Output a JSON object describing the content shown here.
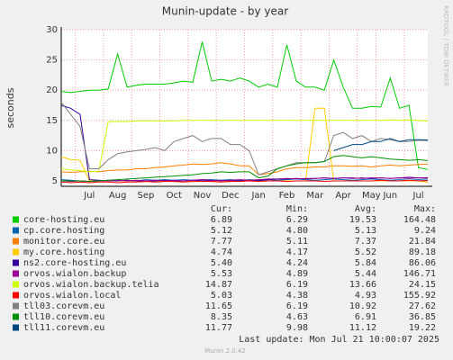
{
  "chart_data": {
    "type": "line",
    "title": "Munin-update - by year",
    "y_label": "seconds",
    "categories": [
      null,
      null,
      null,
      "Jul",
      null,
      null,
      "Aug",
      null,
      null,
      "Sep",
      null,
      null,
      "Oct",
      null,
      null,
      "Nov",
      null,
      null,
      "Dec",
      null,
      null,
      "Jan",
      null,
      null,
      "Feb",
      null,
      null,
      "Mar",
      null,
      null,
      "Apr",
      null,
      null,
      "May",
      null,
      "Jun",
      null,
      null,
      "Jul",
      null
    ],
    "ylim": [
      4.1,
      30
    ],
    "yticks": [
      5,
      10,
      15,
      20,
      25,
      30
    ],
    "grid": true,
    "legend_headers": [
      "Cur:",
      "Min:",
      "Avg:",
      "Max:"
    ],
    "series": [
      {
        "name": "core-hosting.eu",
        "color": "#00cc00",
        "stats": [
          "6.89",
          "6.29",
          "19.53",
          "164.48"
        ],
        "values": [
          19.8,
          19.6,
          19.8,
          20,
          20,
          20.2,
          26,
          20.5,
          20.8,
          21,
          21,
          21,
          21.2,
          21.5,
          21.3,
          28,
          21.5,
          21.8,
          21.5,
          22,
          21.5,
          20.5,
          21,
          20.5,
          27.5,
          21.5,
          20.5,
          20.5,
          20,
          25,
          20.5,
          17,
          17,
          17.3,
          17.2,
          22,
          17,
          17.5,
          7.2,
          6.89
        ]
      },
      {
        "name": "cp.core.hosting",
        "color": "#0066b3",
        "stats": [
          "5.12",
          "4.80",
          "5.13",
          "9.24"
        ],
        "values": [
          5.2,
          5.1,
          5,
          4.9,
          5,
          5.1,
          5,
          5.1,
          5,
          5.2,
          5.1,
          5.2,
          5.1,
          5.2,
          5.1,
          5.2,
          5.2,
          5.1,
          5.2,
          5.1,
          5.2,
          5.1,
          5.2,
          5.1,
          5.2,
          5.3,
          5.2,
          5.1,
          5.2,
          5.3,
          5.2,
          5.1,
          5.2,
          5.3,
          5.2,
          5.1,
          5.2,
          5.1,
          5.2,
          5.12
        ]
      },
      {
        "name": "monitor.core.eu",
        "color": "#ff8000",
        "stats": [
          "7.77",
          "5.11",
          "7.37",
          "21.84"
        ],
        "values": [
          6.5,
          6.4,
          6.5,
          6.6,
          6.5,
          6.7,
          6.8,
          6.8,
          7,
          7,
          7.2,
          7.3,
          7.5,
          7.6,
          7.8,
          7.7,
          7.8,
          8,
          7.8,
          7.5,
          7.5,
          6,
          6.2,
          6.5,
          7,
          7.2,
          7.2,
          7.3,
          7.3,
          7.5,
          7.5,
          7.4,
          7.5,
          7.3,
          7.5,
          7.6,
          7.5,
          7.6,
          7.7,
          7.77
        ]
      },
      {
        "name": "my.core.hosting",
        "color": "#ffcc00",
        "stats": [
          "4.74",
          "4.17",
          "5.52",
          "89.18"
        ],
        "values": [
          9,
          8.5,
          8.4,
          5,
          5,
          5,
          5,
          5,
          5,
          5,
          5,
          5,
          5,
          5,
          5,
          5,
          5,
          5,
          5,
          5,
          5,
          5,
          5,
          5,
          5,
          5,
          5,
          17,
          17,
          5,
          5,
          5,
          5,
          5,
          5,
          5,
          5,
          5,
          5,
          4.74
        ]
      },
      {
        "name": "ns2.core-hosting.eu",
        "color": "#330099",
        "stats": [
          "5.40",
          "4.24",
          "5.84",
          "86.06"
        ],
        "values": [
          17.5,
          17,
          16,
          5.2,
          5.1,
          5,
          5,
          5.1,
          5,
          5,
          5,
          5.1,
          5,
          5,
          5.1,
          5,
          5,
          5.1,
          5,
          5,
          5.1,
          5,
          5.2,
          5.3,
          5.3,
          5.4,
          5.3,
          5.4,
          5.5,
          5.4,
          5.5,
          5.4,
          5.5,
          5.4,
          5.5,
          5.4,
          5.5,
          5.4,
          5.5,
          5.4
        ]
      },
      {
        "name": "orvos.wialon.backup",
        "color": "#990099",
        "stats": [
          "5.53",
          "4.89",
          "5.44",
          "146.71"
        ],
        "values": [
          5,
          4.9,
          5,
          4.9,
          5,
          5,
          5.1,
          5,
          5.1,
          5,
          5.1,
          5,
          5.1,
          5,
          5.1,
          5.2,
          5.1,
          5,
          5.1,
          5.2,
          5.1,
          5.2,
          5.3,
          5.3,
          5.4,
          5.3,
          5.4,
          5.4,
          5.5,
          5.4,
          5.5,
          5.5,
          5.4,
          5.5,
          5.5,
          5.4,
          5.5,
          5.6,
          5.5,
          5.53
        ]
      },
      {
        "name": "orvos.wialon.backup.telia",
        "color": "#ccff00",
        "stats": [
          "14.87",
          "6.19",
          "13.66",
          "24.15"
        ],
        "values": [
          7,
          6.8,
          6.7,
          6.5,
          6.6,
          14.8,
          14.8,
          14.8,
          14.9,
          14.9,
          14.9,
          14.9,
          14.9,
          15,
          15,
          15,
          15,
          15,
          15,
          15,
          15,
          15,
          15,
          15,
          15,
          15,
          15,
          15,
          15,
          15,
          15,
          15,
          15,
          15,
          15,
          15.1,
          15,
          15.1,
          15,
          14.87
        ]
      },
      {
        "name": "orvos.wialon.local",
        "color": "#ff0000",
        "stats": [
          "5.03",
          "4.38",
          "4.93",
          "155.92"
        ],
        "values": [
          4.8,
          4.7,
          4.8,
          4.7,
          4.8,
          4.8,
          4.7,
          4.8,
          4.8,
          4.9,
          4.8,
          4.9,
          4.9,
          4.8,
          4.9,
          4.9,
          4.9,
          4.8,
          4.9,
          4.9,
          5,
          4.9,
          5,
          5,
          4.9,
          5,
          5,
          5,
          4.9,
          5,
          5,
          5,
          5,
          5,
          5.1,
          5,
          5,
          5.1,
          5,
          5.03
        ]
      },
      {
        "name": "tll03.corevm.eu",
        "color": "#808080",
        "stats": [
          "11.65",
          "6.19",
          "10.92",
          "27.62"
        ],
        "values": [
          18,
          16,
          14,
          7,
          7,
          8.5,
          9.5,
          9.8,
          10,
          10.2,
          10.5,
          10,
          11.5,
          12,
          12.5,
          11.5,
          12,
          12,
          11,
          11,
          10,
          6,
          6.5,
          7,
          7.5,
          8,
          8,
          8,
          8.2,
          12.5,
          13,
          12,
          12.5,
          11.5,
          12,
          11.8,
          11.5,
          11.5,
          11.7,
          11.65
        ]
      },
      {
        "name": "tll10.corevm.eu",
        "color": "#008f00",
        "stats": [
          "8.35",
          "4.63",
          "6.91",
          "36.85"
        ],
        "values": [
          5,
          5,
          5,
          4.9,
          5,
          5.1,
          5.2,
          5.3,
          5.4,
          5.5,
          5.6,
          5.7,
          5.8,
          5.9,
          6,
          6.2,
          6.3,
          6.5,
          6.4,
          6.5,
          6.5,
          5.5,
          5.8,
          7,
          7.5,
          7.8,
          8,
          8,
          8.2,
          9,
          9.2,
          9,
          8.8,
          9,
          8.8,
          8.6,
          8.5,
          8.4,
          8.5,
          8.35
        ]
      },
      {
        "name": "tll11.corevm.eu",
        "color": "#00487d",
        "stats": [
          "11.77",
          "9.98",
          "11.12",
          "19.22"
        ],
        "values": [
          null,
          null,
          null,
          null,
          null,
          null,
          null,
          null,
          null,
          null,
          null,
          null,
          null,
          null,
          null,
          null,
          null,
          null,
          null,
          null,
          null,
          null,
          null,
          null,
          null,
          null,
          null,
          null,
          null,
          10,
          10.5,
          11,
          11,
          11.5,
          11.5,
          12,
          11.5,
          11.8,
          11.8,
          11.77
        ]
      }
    ],
    "last_update": "Last update: Mon Jul 21 10:00:07 2025"
  },
  "watermark": "RRDTOOL / TOBI OETIKER",
  "footer": "Munin 2.0.42"
}
